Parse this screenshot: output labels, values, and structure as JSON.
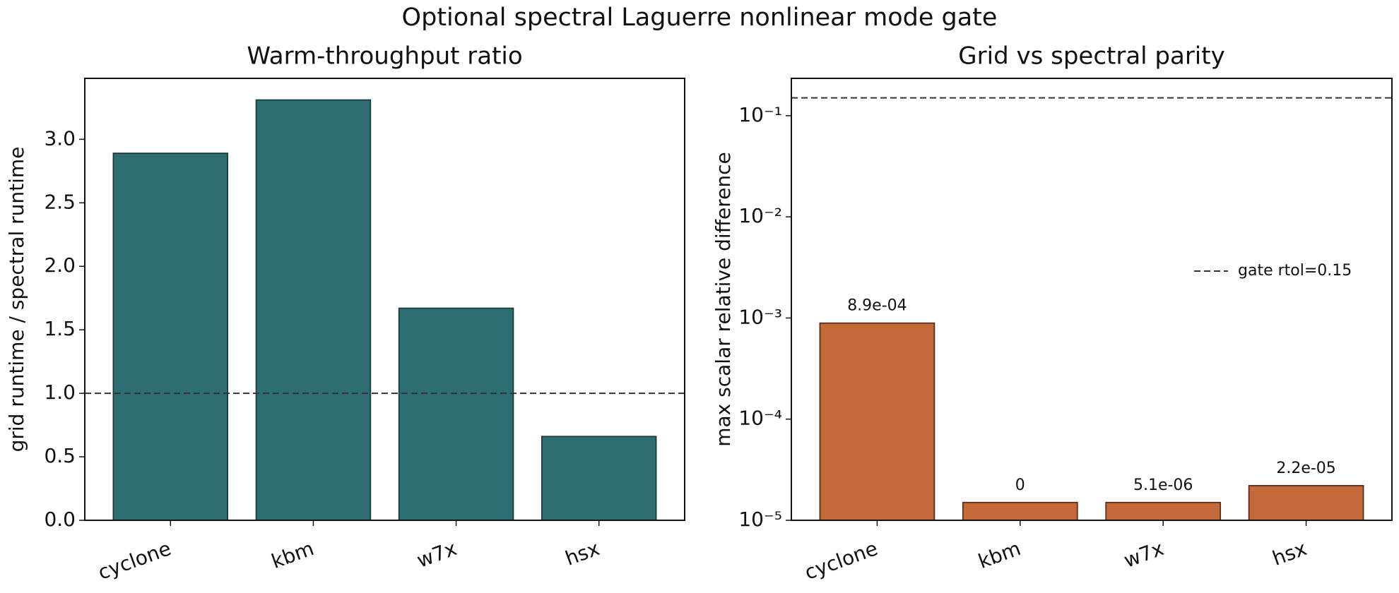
{
  "title": "Optional spectral Laguerre nonlinear mode gate",
  "chart_data": [
    {
      "type": "bar",
      "title": "Warm-throughput ratio",
      "y_label": "grid runtime / spectral runtime",
      "categories": [
        "cyclone",
        "kbm",
        "w7x",
        "hsx"
      ],
      "values": [
        2.89,
        3.31,
        1.67,
        0.66
      ],
      "color": "#2e6d71",
      "edgecolor": "#1d3b3c",
      "ylim": [
        0,
        3.48
      ],
      "yticks": [
        {
          "value": 0,
          "label": "0.0"
        },
        0.5,
        {
          "value": 1,
          "label": "1.0"
        },
        1.5,
        {
          "value": 2,
          "label": "2.0"
        },
        2.5,
        {
          "value": 3,
          "label": "3.0"
        }
      ],
      "hline": 1,
      "log": false
    },
    {
      "type": "bar",
      "title": "Grid vs spectral parity",
      "y_label": "max scalar relative difference",
      "categories": [
        "cyclone",
        "kbm",
        "w7x",
        "hsx"
      ],
      "values": [
        0.00089,
        0,
        5.1e-06,
        2.2e-05
      ],
      "value_labels": [
        "8.9e-04",
        "0",
        "5.1e-06",
        "2.2e-05"
      ],
      "color": "#c4693a",
      "edgecolor": "#5a2e1a",
      "ylim": [
        1e-05,
        0.234
      ],
      "log": true,
      "bar_floor": 1.5e-05,
      "yticks": [
        {
          "value": 1e-05,
          "label": "10⁻⁵"
        },
        {
          "value": 0.0001,
          "label": "10⁻⁴"
        },
        {
          "value": 0.001,
          "label": "10⁻³"
        },
        {
          "value": 0.01,
          "label": "10⁻²"
        },
        {
          "value": 0.1,
          "label": "10⁻¹"
        }
      ],
      "hline": {
        "value": 0.15,
        "name": "gate rtol=0.15"
      },
      "legend": "center right"
    }
  ]
}
